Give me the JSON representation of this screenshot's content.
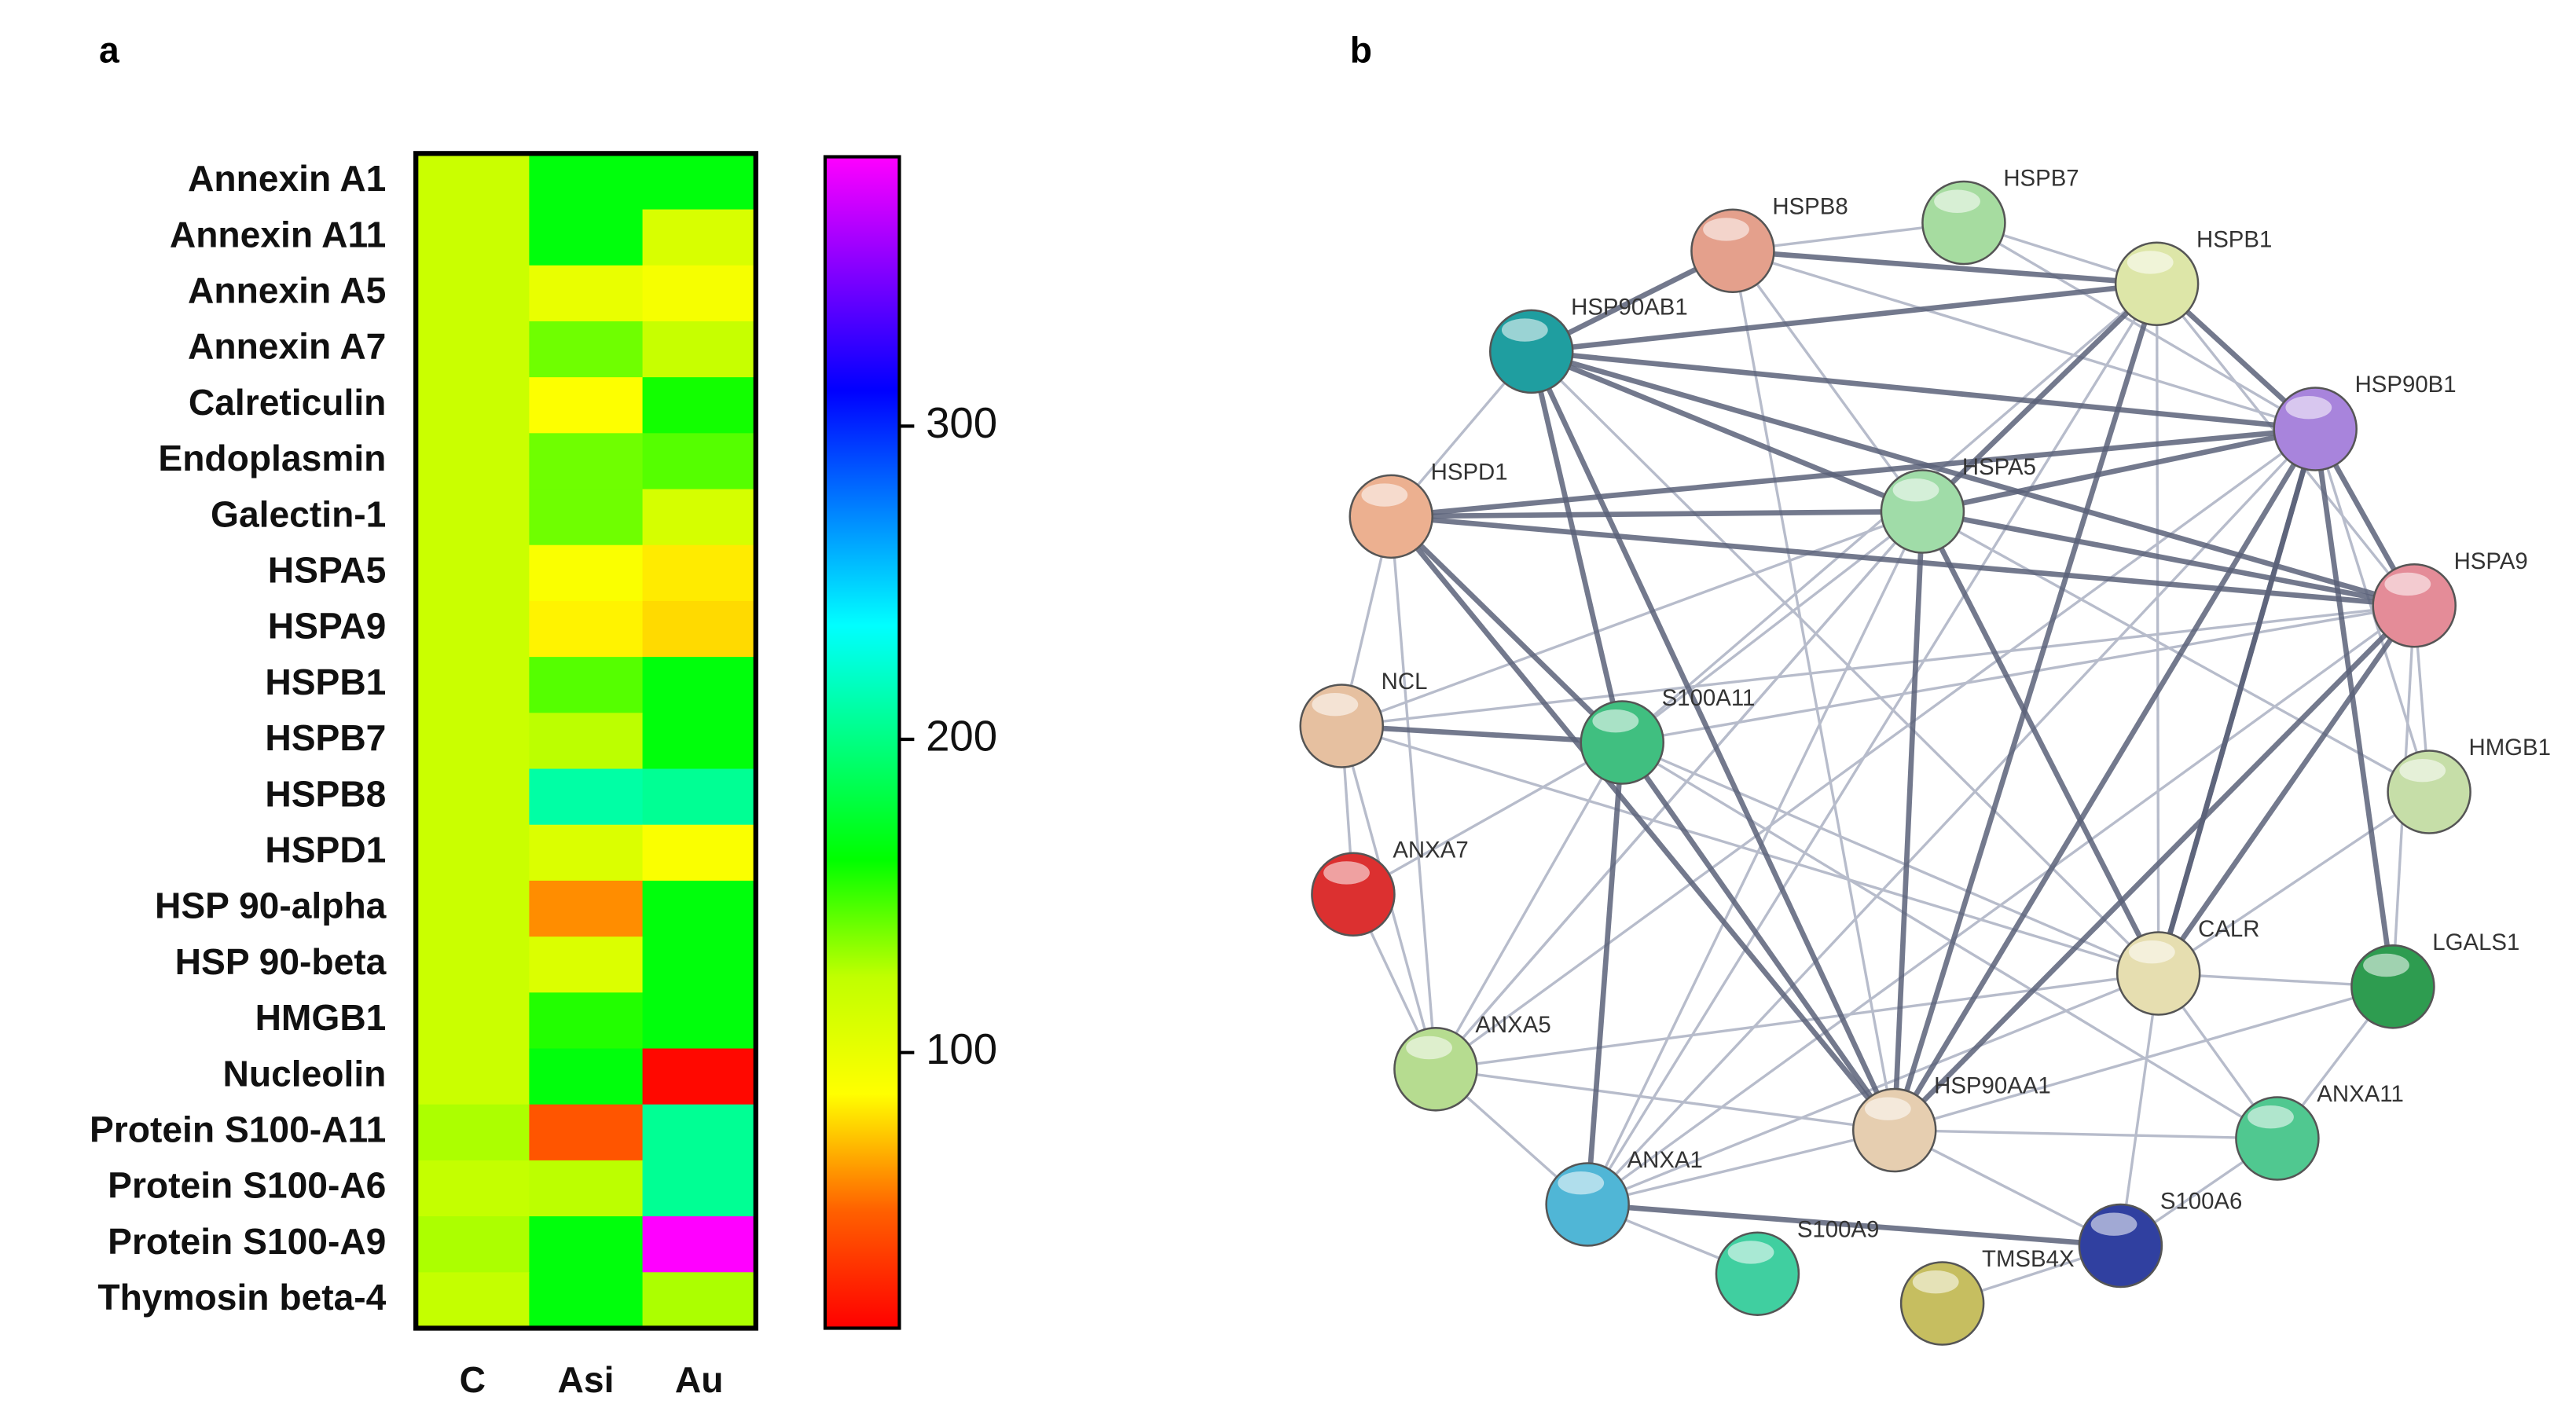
{
  "chart_data": {
    "type": "heatmap",
    "panel_label": "a",
    "rows": [
      "Annexin A1",
      "Annexin A11",
      "Annexin A5",
      "Annexin A7",
      "Calreticulin",
      "Endoplasmin",
      "Galectin-1",
      "HSPA5",
      "HSPA9",
      "HSPB1",
      "HSPB7",
      "HSPB8",
      "HSPD1",
      "HSP 90-alpha",
      "HSP 90-beta",
      "HMGB1",
      "Nucleolin",
      "Protein S100-A11",
      "Protein S100-A6",
      "Protein S100-A9",
      "Thymosin beta-4"
    ],
    "columns": [
      "C",
      "Asi",
      "Au"
    ],
    "values": [
      [
        118,
        165,
        165
      ],
      [
        118,
        165,
        110
      ],
      [
        118,
        100,
        92
      ],
      [
        118,
        140,
        120
      ],
      [
        118,
        88,
        158
      ],
      [
        118,
        140,
        145
      ],
      [
        118,
        140,
        112
      ],
      [
        118,
        90,
        82
      ],
      [
        118,
        84,
        78
      ],
      [
        118,
        145,
        165
      ],
      [
        118,
        125,
        165
      ],
      [
        118,
        210,
        205
      ],
      [
        118,
        108,
        90
      ],
      [
        118,
        60,
        165
      ],
      [
        118,
        108,
        165
      ],
      [
        118,
        155,
        165
      ],
      [
        118,
        165,
        15
      ],
      [
        128,
        45,
        205
      ],
      [
        122,
        125,
        205
      ],
      [
        128,
        165,
        386
      ],
      [
        122,
        165,
        128
      ]
    ],
    "zlim": [
      12,
      386
    ],
    "zticks": [
      100,
      200,
      300
    ],
    "colors": [
      "#ff0000",
      "#ff6000",
      "#ffff00",
      "#c0ff00",
      "#00ff00",
      "#00ff80",
      "#00ffff",
      "#0080ff",
      "#0000ff",
      "#8000ff",
      "#ff00ff"
    ]
  },
  "network": {
    "panel_label": "b",
    "nodes": [
      {
        "label": "HSPB8",
        "color": "#e4a08c"
      },
      {
        "label": "HSPB7",
        "color": "#a6dca0"
      },
      {
        "label": "HSPB1",
        "color": "#dde6a8"
      },
      {
        "label": "HSP90AB1",
        "color": "#1f9ea0"
      },
      {
        "label": "HSP90B1",
        "color": "#a884dc"
      },
      {
        "label": "HSPD1",
        "color": "#ecb090"
      },
      {
        "label": "HSPA5",
        "color": "#a0dca8"
      },
      {
        "label": "HSPA9",
        "color": "#e48c98"
      },
      {
        "label": "NCL",
        "color": "#e6c0a0"
      },
      {
        "label": "S100A11",
        "color": "#40bf80"
      },
      {
        "label": "HMGB1",
        "color": "#c6dea8"
      },
      {
        "label": "ANXA7",
        "color": "#dc3030"
      },
      {
        "label": "CALR",
        "color": "#e6deb0"
      },
      {
        "label": "LGALS1",
        "color": "#2e9c50"
      },
      {
        "label": "ANXA5",
        "color": "#b6dc90"
      },
      {
        "label": "HSP90AA1",
        "color": "#e6ceb0"
      },
      {
        "label": "ANXA11",
        "color": "#50c890"
      },
      {
        "label": "ANXA1",
        "color": "#50b6d6"
      },
      {
        "label": "S100A6",
        "color": "#3040a0"
      },
      {
        "label": "S100A9",
        "color": "#40cfa0"
      },
      {
        "label": "TMSB4X",
        "color": "#c6be60"
      }
    ]
  }
}
